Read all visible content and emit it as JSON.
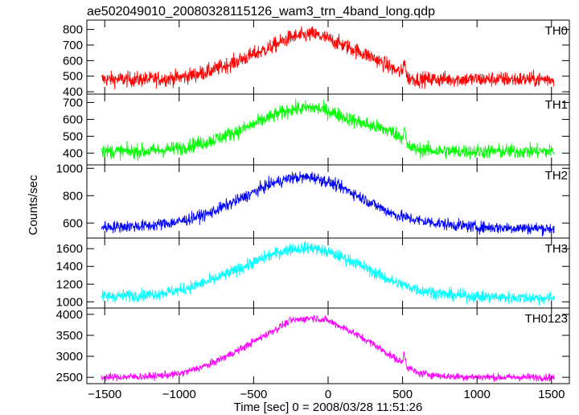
{
  "chart_data": {
    "type": "line",
    "title": "ae502049010_20080328115126_wam3_trn_4band_long.qdp",
    "xlabel": "Time [sec] 0 = 2008/03/28 11:51:26",
    "ylabel": "Counts/sec",
    "xlim": [
      -1620,
      1620
    ],
    "xticks": [
      -1500,
      -1000,
      -500,
      0,
      500,
      1000,
      1500
    ],
    "xtick_labels": [
      "−1500",
      "−1000",
      "−500",
      "0",
      "500",
      "1000",
      "1500"
    ],
    "legend": "none",
    "grid": false,
    "series": [
      {
        "name": "TH0",
        "color": "#ff0000",
        "ylim": [
          385,
          860
        ],
        "yticks": [
          400,
          500,
          600,
          700,
          800
        ],
        "x": [
          -1520,
          -1200,
          -1000,
          -800,
          -600,
          -400,
          -250,
          -100,
          0,
          150,
          300,
          450,
          500,
          510,
          530,
          600,
          800,
          1000,
          1200,
          1520
        ],
        "y": [
          480,
          480,
          490,
          530,
          600,
          680,
          750,
          770,
          740,
          680,
          620,
          540,
          520,
          620,
          490,
          480,
          480,
          480,
          480,
          480
        ],
        "noise": 25
      },
      {
        "name": "TH1",
        "color": "#00ff00",
        "ylim": [
          330,
          750
        ],
        "yticks": [
          400,
          500,
          600,
          700
        ],
        "x": [
          -1520,
          -1200,
          -1000,
          -800,
          -600,
          -400,
          -250,
          -100,
          0,
          150,
          300,
          450,
          500,
          510,
          530,
          600,
          800,
          1000,
          1200,
          1520
        ],
        "y": [
          410,
          410,
          430,
          470,
          530,
          610,
          660,
          670,
          650,
          600,
          560,
          520,
          490,
          560,
          440,
          420,
          410,
          410,
          410,
          410
        ],
        "noise": 22
      },
      {
        "name": "TH2",
        "color": "#0000ff",
        "ylim": [
          490,
          1025
        ],
        "yticks": [
          600,
          800,
          1000
        ],
        "x": [
          -1520,
          -1200,
          -1000,
          -800,
          -600,
          -400,
          -250,
          -100,
          0,
          150,
          300,
          450,
          600,
          800,
          1000,
          1200,
          1520
        ],
        "y": [
          570,
          580,
          610,
          670,
          770,
          880,
          930,
          935,
          900,
          830,
          740,
          660,
          620,
          590,
          570,
          565,
          560
        ],
        "noise": 22
      },
      {
        "name": "TH3",
        "color": "#00ffff",
        "ylim": [
          930,
          1720
        ],
        "yticks": [
          1000,
          1200,
          1400,
          1600
        ],
        "x": [
          -1520,
          -1200,
          -1000,
          -800,
          -600,
          -400,
          -250,
          -100,
          0,
          150,
          300,
          450,
          600,
          800,
          1000,
          1200,
          1520
        ],
        "y": [
          1060,
          1080,
          1130,
          1230,
          1370,
          1520,
          1600,
          1610,
          1560,
          1470,
          1340,
          1220,
          1140,
          1080,
          1060,
          1050,
          1040
        ],
        "noise": 35
      },
      {
        "name": "TH0123",
        "color": "#ff00ff",
        "ylim": [
          2350,
          4150
        ],
        "yticks": [
          2500,
          3000,
          3500,
          4000
        ],
        "x": [
          -1520,
          -1200,
          -1000,
          -800,
          -600,
          -400,
          -250,
          -100,
          0,
          150,
          300,
          450,
          500,
          510,
          530,
          600,
          800,
          1000,
          1200,
          1520
        ],
        "y": [
          2500,
          2520,
          2580,
          2800,
          3150,
          3550,
          3850,
          3920,
          3850,
          3600,
          3300,
          2950,
          2850,
          3100,
          2750,
          2600,
          2520,
          2510,
          2500,
          2500
        ],
        "noise": 45
      }
    ]
  }
}
